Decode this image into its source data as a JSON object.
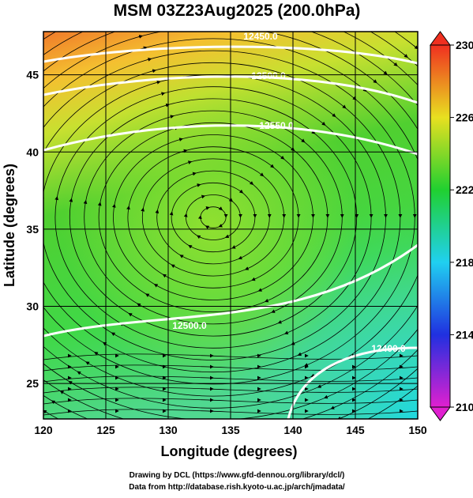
{
  "title": "MSM 03Z23Aug2025 (200.0hPa)",
  "x_axis": {
    "label": "Longitude (degrees)",
    "lim": [
      120,
      150
    ],
    "ticks": [
      120,
      125,
      130,
      135,
      140,
      145,
      150
    ]
  },
  "y_axis": {
    "label": "Latitude  (degrees)",
    "lim": [
      22.7,
      47.8
    ],
    "ticks": [
      25,
      30,
      35,
      40,
      45
    ]
  },
  "colorbar": {
    "lim": [
      210,
      230
    ],
    "ticks": [
      210,
      214,
      218,
      222,
      226,
      230
    ]
  },
  "contour_labels": [
    "12450.0",
    "12500.0",
    "12550.0",
    "12500.0",
    "12400.0"
  ],
  "footer": [
    "Drawing by DCL (https://www.gfd-dennou.org/library/dcl/)",
    "Data from http://database.rish.kyoto-u.ac.jp/arch/jmadata/"
  ]
}
